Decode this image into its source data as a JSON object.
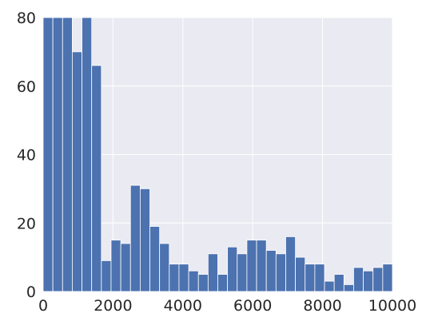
{
  "chart_data": {
    "type": "bar",
    "subtype": "histogram",
    "title": "",
    "xlabel": "",
    "ylabel": "",
    "xlim": [
      0,
      10000
    ],
    "ylim": [
      0,
      80
    ],
    "bin_width": 277.78,
    "bin_starts": [
      0,
      277.78,
      555.56,
      833.33,
      1111.11,
      1388.89,
      1666.67,
      1944.44,
      2222.22,
      2500,
      2777.78,
      3055.56,
      3333.33,
      3611.11,
      3888.89,
      4166.67,
      4444.44,
      4722.22,
      5000,
      5277.78,
      5555.56,
      5833.33,
      6111.11,
      6388.89,
      6666.67,
      6944.44,
      7222.22,
      7500,
      7777.78,
      8055.56,
      8333.33,
      8611.11,
      8888.89,
      9166.67,
      9444.44,
      9722.22
    ],
    "values": [
      80,
      80,
      80,
      70,
      80,
      66,
      9,
      15,
      14,
      31,
      30,
      19,
      14,
      8,
      8,
      6,
      5,
      11,
      5,
      13,
      11,
      15,
      15,
      12,
      11,
      16,
      10,
      8,
      8,
      3,
      5,
      2,
      7,
      6,
      7,
      8
    ],
    "x_ticks": [
      0,
      2000,
      4000,
      6000,
      8000,
      10000
    ],
    "x_tick_labels": [
      "0",
      "2000",
      "4000",
      "6000",
      "8000",
      "10000"
    ],
    "y_ticks": [
      0,
      20,
      40,
      60,
      80
    ],
    "y_tick_labels": [
      "0",
      "20",
      "40",
      "60",
      "80"
    ],
    "grid": true,
    "colors": {
      "plot_background": "#EAEAF2",
      "bar_fill": "#4C72B0",
      "bar_edge": "#FFFFFF",
      "grid": "#FFFFFF",
      "tick_text": "#262626"
    }
  }
}
